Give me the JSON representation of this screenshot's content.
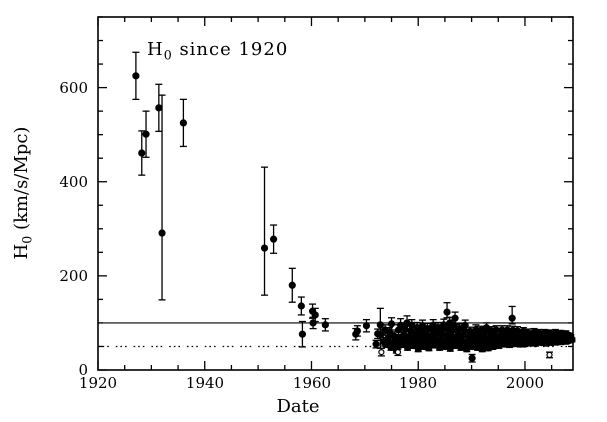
{
  "figure_title": {
    "prefix": "H",
    "sub": "0",
    "suffix": " since 1920"
  },
  "axes": {
    "x_title": "Date",
    "y_title": {
      "prefix": "H",
      "sub": "0",
      "suffix": " (km/s/Mpc)"
    }
  },
  "colors": {
    "marker": "#000000",
    "axis": "#000000",
    "background": "#ffffff",
    "reference_line": "#000000"
  },
  "chart_data": {
    "type": "scatter",
    "title": "H0 since 1920",
    "xlabel": "Date",
    "ylabel": "H0 (km/s/Mpc)",
    "xlim": [
      1920,
      2009
    ],
    "ylim": [
      0,
      750
    ],
    "grid": false,
    "legend": false,
    "x_major_ticks": [
      1920,
      1940,
      1960,
      1980,
      2000
    ],
    "x_tick_labels": [
      "1920",
      "1940",
      "1960",
      "1980",
      "2000"
    ],
    "x_minor_step": 5,
    "y_major_ticks": [
      0,
      200,
      400,
      600
    ],
    "y_tick_labels": [
      "0",
      "200",
      "400",
      "600"
    ],
    "y_minor_step": 50,
    "reference_lines": [
      {
        "y": 100,
        "style": "solid"
      },
      {
        "y": 50,
        "style": "dash-dot"
      }
    ],
    "points": [
      [
        1927.1,
        625,
        50
      ],
      [
        1928.2,
        461,
        47
      ],
      [
        1929.0,
        501,
        49
      ],
      [
        1931.4,
        557,
        50
      ],
      [
        1936.0,
        525,
        50
      ],
      [
        1952.9,
        278,
        30
      ],
      [
        1956.4,
        180,
        36
      ],
      [
        1958.1,
        136,
        19
      ],
      [
        1958.3,
        76,
        27
      ],
      [
        1960.2,
        125,
        15
      ],
      [
        1960.7,
        117,
        14
      ],
      [
        1960.3,
        100,
        12
      ],
      [
        1962.6,
        96,
        13
      ],
      [
        1968.3,
        76,
        12
      ],
      [
        1968.6,
        83,
        11
      ],
      [
        1970.3,
        94,
        13
      ],
      [
        1972.1,
        55,
        8
      ],
      [
        1972.4,
        77,
        10
      ],
      [
        1973.0,
        75,
        12
      ],
      [
        1973.5,
        60,
        9
      ],
      [
        1973.8,
        85,
        11
      ],
      [
        1974.1,
        55,
        7
      ],
      [
        1974.4,
        69,
        9
      ],
      [
        1974.6,
        81,
        9
      ],
      [
        1974.9,
        48,
        6
      ],
      [
        1975.0,
        98,
        13
      ],
      [
        1975.2,
        57,
        7
      ],
      [
        1975.5,
        72,
        9
      ],
      [
        1975.7,
        63,
        8
      ],
      [
        1975.9,
        42,
        6
      ],
      [
        1976.1,
        50,
        6
      ],
      [
        1976.3,
        85,
        11
      ],
      [
        1976.5,
        67,
        8
      ],
      [
        1976.7,
        95,
        14
      ],
      [
        1976.9,
        58,
        7
      ],
      [
        1977.1,
        55,
        7
      ],
      [
        1977.3,
        75,
        10
      ],
      [
        1977.5,
        88,
        12
      ],
      [
        1977.7,
        65,
        8
      ],
      [
        1977.9,
        100,
        15
      ],
      [
        1978.0,
        48,
        6
      ],
      [
        1978.2,
        60,
        8
      ],
      [
        1978.4,
        72,
        9
      ],
      [
        1978.6,
        83,
        10
      ],
      [
        1978.8,
        95,
        12
      ],
      [
        1978.9,
        55,
        7
      ],
      [
        1979.1,
        52,
        6
      ],
      [
        1979.3,
        66,
        8
      ],
      [
        1979.6,
        77,
        9
      ],
      [
        1979.8,
        90,
        11
      ],
      [
        1979.9,
        61,
        7
      ],
      [
        1980.0,
        45,
        6
      ],
      [
        1980.2,
        58,
        7
      ],
      [
        1980.4,
        70,
        8
      ],
      [
        1980.6,
        82,
        10
      ],
      [
        1980.8,
        94,
        12
      ],
      [
        1980.9,
        65,
        8
      ],
      [
        1981.1,
        50,
        6
      ],
      [
        1981.3,
        63,
        8
      ],
      [
        1981.5,
        75,
        9
      ],
      [
        1981.7,
        88,
        11
      ],
      [
        1981.9,
        57,
        7
      ],
      [
        1982.0,
        47,
        6
      ],
      [
        1982.2,
        60,
        7
      ],
      [
        1982.4,
        72,
        9
      ],
      [
        1982.6,
        85,
        10
      ],
      [
        1982.8,
        95,
        12
      ],
      [
        1982.9,
        67,
        8
      ],
      [
        1983.1,
        53,
        6
      ],
      [
        1983.3,
        65,
        8
      ],
      [
        1983.5,
        78,
        9
      ],
      [
        1983.7,
        90,
        11
      ],
      [
        1983.9,
        60,
        7
      ],
      [
        1984.0,
        48,
        6
      ],
      [
        1984.2,
        62,
        7
      ],
      [
        1984.4,
        74,
        9
      ],
      [
        1984.6,
        86,
        10
      ],
      [
        1984.8,
        96,
        12
      ],
      [
        1984.9,
        55,
        7
      ],
      [
        1985.1,
        50,
        6
      ],
      [
        1985.3,
        63,
        8
      ],
      [
        1985.5,
        75,
        9
      ],
      [
        1985.7,
        88,
        10
      ],
      [
        1985.9,
        100,
        12
      ],
      [
        1986.0,
        46,
        6
      ],
      [
        1986.1,
        58,
        7
      ],
      [
        1986.3,
        72,
        9
      ],
      [
        1986.5,
        85,
        10
      ],
      [
        1986.7,
        95,
        11
      ],
      [
        1986.8,
        55,
        7
      ],
      [
        1986.9,
        110,
        13
      ],
      [
        1987.1,
        52,
        6
      ],
      [
        1987.3,
        64,
        8
      ],
      [
        1987.5,
        76,
        9
      ],
      [
        1987.7,
        88,
        10
      ],
      [
        1987.9,
        70,
        8
      ],
      [
        1988.0,
        48,
        6
      ],
      [
        1988.2,
        61,
        7
      ],
      [
        1988.4,
        73,
        9
      ],
      [
        1988.6,
        85,
        10
      ],
      [
        1988.8,
        95,
        11
      ],
      [
        1988.9,
        56,
        7
      ],
      [
        1989.1,
        45,
        6
      ],
      [
        1989.3,
        58,
        7
      ],
      [
        1989.5,
        70,
        8
      ],
      [
        1989.7,
        82,
        9
      ],
      [
        1989.9,
        52,
        6
      ],
      [
        1990.1,
        25,
        8
      ],
      [
        1990.2,
        50,
        6
      ],
      [
        1990.4,
        62,
        7
      ],
      [
        1990.6,
        74,
        8
      ],
      [
        1990.8,
        86,
        10
      ],
      [
        1990.9,
        57,
        7
      ],
      [
        1991.1,
        48,
        6
      ],
      [
        1991.3,
        60,
        7
      ],
      [
        1991.5,
        72,
        8
      ],
      [
        1991.7,
        84,
        9
      ],
      [
        1991.9,
        67,
        7
      ],
      [
        1992.0,
        45,
        6
      ],
      [
        1992.2,
        58,
        7
      ],
      [
        1992.4,
        70,
        8
      ],
      [
        1992.6,
        82,
        9
      ],
      [
        1992.8,
        90,
        10
      ],
      [
        1992.9,
        53,
        6
      ],
      [
        1993.1,
        47,
        6
      ],
      [
        1993.3,
        59,
        7
      ],
      [
        1993.5,
        71,
        8
      ],
      [
        1993.7,
        83,
        9
      ],
      [
        1993.9,
        65,
        7
      ],
      [
        1994.0,
        50,
        6
      ],
      [
        1994.2,
        62,
        7
      ],
      [
        1994.4,
        73,
        8
      ],
      [
        1994.6,
        85,
        9
      ],
      [
        1994.8,
        57,
        6
      ],
      [
        1994.9,
        68,
        7
      ],
      [
        1995.1,
        52,
        6
      ],
      [
        1995.3,
        63,
        7
      ],
      [
        1995.5,
        74,
        8
      ],
      [
        1995.7,
        85,
        9
      ],
      [
        1995.9,
        58,
        6
      ],
      [
        1996.1,
        55,
        6
      ],
      [
        1996.3,
        65,
        7
      ],
      [
        1996.5,
        75,
        8
      ],
      [
        1996.7,
        85,
        9
      ],
      [
        1996.9,
        60,
        6
      ],
      [
        1997.1,
        54,
        6
      ],
      [
        1997.3,
        64,
        7
      ],
      [
        1997.5,
        74,
        8
      ],
      [
        1997.7,
        84,
        9
      ],
      [
        1997.9,
        59,
        6
      ],
      [
        1998.0,
        56,
        6
      ],
      [
        1998.2,
        65,
        7
      ],
      [
        1998.4,
        74,
        8
      ],
      [
        1998.6,
        83,
        9
      ],
      [
        1998.8,
        60,
        6
      ],
      [
        1998.9,
        70,
        7
      ],
      [
        1999.1,
        55,
        6
      ],
      [
        1999.3,
        64,
        7
      ],
      [
        1999.5,
        73,
        7
      ],
      [
        1999.7,
        82,
        8
      ],
      [
        1999.9,
        59,
        6
      ],
      [
        2000.0,
        55,
        5
      ],
      [
        2000.2,
        63,
        6
      ],
      [
        2000.4,
        71,
        7
      ],
      [
        2000.6,
        79,
        8
      ],
      [
        2000.8,
        59,
        5
      ],
      [
        2000.9,
        67,
        6
      ],
      [
        2001.1,
        57,
        5
      ],
      [
        2001.3,
        64,
        6
      ],
      [
        2001.5,
        72,
        7
      ],
      [
        2001.7,
        80,
        8
      ],
      [
        2001.9,
        60,
        5
      ],
      [
        2002.0,
        56,
        5
      ],
      [
        2002.2,
        64,
        6
      ],
      [
        2002.4,
        71,
        7
      ],
      [
        2002.6,
        79,
        7
      ],
      [
        2002.8,
        60,
        5
      ],
      [
        2002.9,
        68,
        6
      ],
      [
        2003.1,
        58,
        5
      ],
      [
        2003.3,
        65,
        6
      ],
      [
        2003.5,
        72,
        6
      ],
      [
        2003.7,
        79,
        7
      ],
      [
        2003.9,
        61,
        5
      ],
      [
        2004.0,
        57,
        5
      ],
      [
        2004.2,
        64,
        6
      ],
      [
        2004.4,
        71,
        6
      ],
      [
        2004.6,
        78,
        7
      ],
      [
        2004.9,
        68,
        6
      ],
      [
        2005.1,
        58,
        5
      ],
      [
        2005.3,
        65,
        6
      ],
      [
        2005.5,
        72,
        6
      ],
      [
        2005.7,
        79,
        7
      ],
      [
        2005.9,
        61,
        5
      ],
      [
        2006.1,
        59,
        5
      ],
      [
        2006.3,
        65,
        5
      ],
      [
        2006.5,
        72,
        6
      ],
      [
        2006.7,
        78,
        6
      ],
      [
        2006.9,
        62,
        5
      ],
      [
        2007.1,
        60,
        5
      ],
      [
        2007.3,
        66,
        5
      ],
      [
        2007.5,
        72,
        6
      ],
      [
        2007.7,
        77,
        6
      ],
      [
        2007.9,
        63,
        5
      ],
      [
        2008.0,
        61,
        4
      ],
      [
        2008.2,
        67,
        5
      ],
      [
        2008.4,
        73,
        5
      ],
      [
        2008.6,
        70,
        5
      ],
      [
        2008.8,
        64,
        4
      ]
    ],
    "asym_points": [
      [
        1932.0,
        291,
        142,
        293
      ],
      [
        1951.2,
        259,
        100,
        172
      ],
      [
        1972.9,
        96,
        50,
        35
      ],
      [
        1985.4,
        123,
        12,
        20
      ],
      [
        1997.6,
        110,
        12,
        25
      ]
    ],
    "open_points": [
      [
        1973.1,
        38,
        8
      ],
      [
        1976.2,
        38,
        7
      ],
      [
        2004.6,
        32,
        6
      ]
    ]
  }
}
